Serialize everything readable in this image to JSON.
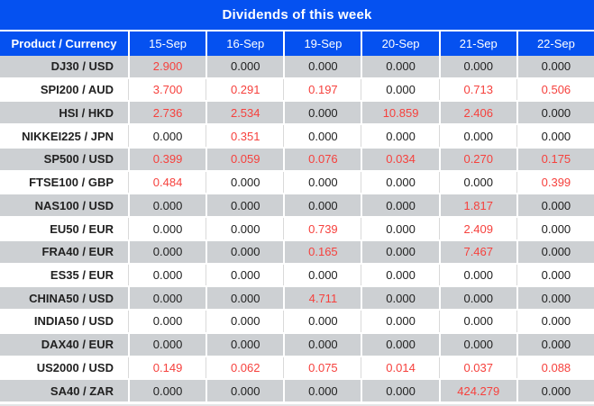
{
  "title": "Dividends of this week",
  "colors": {
    "header_blue": "#0551f0",
    "row_gray": "#cdd0d3",
    "value_red": "#f6413d",
    "value_black": "#212121",
    "border_gray": "#d9d9d9"
  },
  "table": {
    "product_header": "Product / Currency",
    "date_headers": [
      "15-Sep",
      "16-Sep",
      "19-Sep",
      "20-Sep",
      "21-Sep",
      "22-Sep"
    ],
    "rows": [
      {
        "product": "DJ30 / USD",
        "values": [
          "2.900",
          "0.000",
          "0.000",
          "0.000",
          "0.000",
          "0.000"
        ]
      },
      {
        "product": "SPI200 / AUD",
        "values": [
          "3.700",
          "0.291",
          "0.197",
          "0.000",
          "0.713",
          "0.506"
        ]
      },
      {
        "product": "HSI / HKD",
        "values": [
          "2.736",
          "2.534",
          "0.000",
          "10.859",
          "2.406",
          "0.000"
        ]
      },
      {
        "product": "NIKKEI225 / JPN",
        "values": [
          "0.000",
          "0.351",
          "0.000",
          "0.000",
          "0.000",
          "0.000"
        ]
      },
      {
        "product": "SP500 / USD",
        "values": [
          "0.399",
          "0.059",
          "0.076",
          "0.034",
          "0.270",
          "0.175"
        ]
      },
      {
        "product": "FTSE100 / GBP",
        "values": [
          "0.484",
          "0.000",
          "0.000",
          "0.000",
          "0.000",
          "0.399"
        ]
      },
      {
        "product": "NAS100 / USD",
        "values": [
          "0.000",
          "0.000",
          "0.000",
          "0.000",
          "1.817",
          "0.000"
        ]
      },
      {
        "product": "EU50 / EUR",
        "values": [
          "0.000",
          "0.000",
          "0.739",
          "0.000",
          "2.409",
          "0.000"
        ]
      },
      {
        "product": "FRA40 / EUR",
        "values": [
          "0.000",
          "0.000",
          "0.165",
          "0.000",
          "7.467",
          "0.000"
        ]
      },
      {
        "product": "ES35 / EUR",
        "values": [
          "0.000",
          "0.000",
          "0.000",
          "0.000",
          "0.000",
          "0.000"
        ]
      },
      {
        "product": "CHINA50 / USD",
        "values": [
          "0.000",
          "0.000",
          "4.711",
          "0.000",
          "0.000",
          "0.000"
        ]
      },
      {
        "product": "INDIA50 / USD",
        "values": [
          "0.000",
          "0.000",
          "0.000",
          "0.000",
          "0.000",
          "0.000"
        ]
      },
      {
        "product": "DAX40 / EUR",
        "values": [
          "0.000",
          "0.000",
          "0.000",
          "0.000",
          "0.000",
          "0.000"
        ]
      },
      {
        "product": "US2000 / USD",
        "values": [
          "0.149",
          "0.062",
          "0.075",
          "0.014",
          "0.037",
          "0.088"
        ]
      },
      {
        "product": "SA40 / ZAR",
        "values": [
          "0.000",
          "0.000",
          "0.000",
          "0.000",
          "424.279",
          "0.000"
        ]
      }
    ]
  }
}
